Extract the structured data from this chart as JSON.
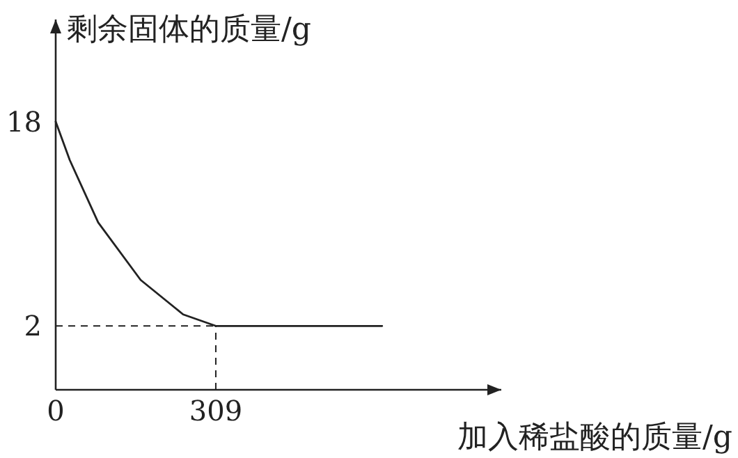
{
  "chart_data": {
    "type": "line",
    "xlabel": "加入稀盐酸的质量/g",
    "ylabel": "剩余固体的质量/g",
    "x": [
      0,
      27,
      82,
      164,
      246,
      309,
      630
    ],
    "series": [
      {
        "color": "#222222",
        "values": [
          18,
          15,
          10.1,
          5.6,
          2.9,
          2,
          2
        ]
      }
    ],
    "xlim": [
      0,
      860
    ],
    "ylim": [
      -3,
      26
    ],
    "xticks": [
      0,
      309
    ],
    "yticks": [
      2,
      18
    ],
    "ref_lines": [
      {
        "axis": "y",
        "value": 2,
        "line_style": "dashed",
        "color": "#222222"
      },
      {
        "axis": "x",
        "value": 309,
        "line_style": "dashed",
        "color": "#222222"
      }
    ],
    "line_style": "solid"
  }
}
